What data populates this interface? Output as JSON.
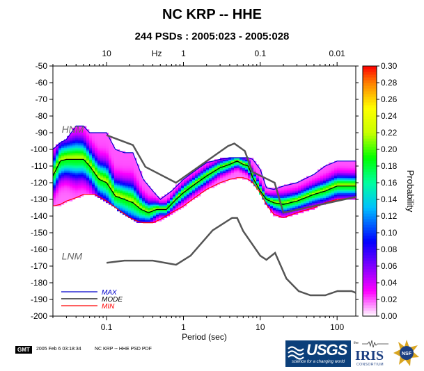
{
  "page": {
    "title": "NC KRP -- HHE",
    "subtitle": "244 PSDs : 2005:023 - 2005:028",
    "footer_date": "2005 Feb  6 03:18:34",
    "footer_file": "NC KRP -- HHE PSD PDF",
    "gmt_badge": "GMT",
    "logos": {
      "usgs": "USGS",
      "usgs_tagline": "science for a changing world",
      "iris_the": "the",
      "iris": "IRIS",
      "iris_consortium": "CONSORTIUM",
      "nsf": "NSF"
    }
  },
  "chart_data": {
    "type": "heatmap",
    "title": "NC KRP -- HHE",
    "subtitle": "244 PSDs : 2005:023 - 2005:028",
    "xlabel": "Period (sec)",
    "x_scale": "log",
    "xlim": [
      0.02,
      175
    ],
    "x_ticks": [
      0.1,
      1,
      10,
      100
    ],
    "x_tick_labels": [
      "0.1",
      "1",
      "10",
      "100"
    ],
    "top_axis": {
      "label": "Hz",
      "ticks": [
        10,
        1,
        0.1,
        0.01
      ],
      "tick_labels": [
        "10",
        "1",
        "0.1",
        "0.01"
      ]
    },
    "ylim": [
      -200,
      -50
    ],
    "y_ticks": [
      -200,
      -190,
      -180,
      -170,
      -160,
      -150,
      -140,
      -130,
      -120,
      -110,
      -100,
      -90,
      -80,
      -70,
      -60,
      -50
    ],
    "y_tick_labels": [
      "-200",
      "-190",
      "-180",
      "-170",
      "-160",
      "-150",
      "-140",
      "-130",
      "-120",
      "-110",
      "-100",
      "-90",
      "-80",
      "-70",
      "-60",
      "-50"
    ],
    "colorbar": {
      "label": "Probability",
      "range": [
        0,
        0.3
      ],
      "ticks": [
        0.0,
        0.02,
        0.04,
        0.06,
        0.08,
        0.1,
        0.12,
        0.14,
        0.16,
        0.18,
        0.2,
        0.22,
        0.24,
        0.26,
        0.28,
        0.3
      ],
      "tick_labels": [
        "0.00",
        "0.02",
        "0.04",
        "0.06",
        "0.08",
        "0.10",
        "0.12",
        "0.14",
        "0.16",
        "0.18",
        "0.20",
        "0.22",
        "0.24",
        "0.26",
        "0.28",
        "0.30"
      ],
      "colors": [
        "#ffffff",
        "#ff00ff",
        "#8000ff",
        "#0000ff",
        "#00bfff",
        "#00ffc0",
        "#00ff00",
        "#c0ff00",
        "#ffff00",
        "#ff8000",
        "#ff0000"
      ]
    },
    "legend": {
      "placement": "bottom-left",
      "entries": [
        {
          "label": "MAX",
          "color": "#0000cc"
        },
        {
          "label": "MODE",
          "color": "#000000"
        },
        {
          "label": "MIN",
          "color": "#ff0000"
        }
      ]
    },
    "annotations": [
      {
        "text": "HNM",
        "x": 0.026,
        "y": -88
      },
      {
        "text": "LNM",
        "x": 0.026,
        "y": -164
      }
    ],
    "series": [
      {
        "name": "MAX",
        "color": "#0000cc",
        "x": [
          0.02,
          0.025,
          0.03,
          0.04,
          0.05,
          0.06,
          0.08,
          0.1,
          0.13,
          0.17,
          0.22,
          0.3,
          0.4,
          0.5,
          0.7,
          1,
          1.5,
          2,
          3,
          4,
          5,
          6,
          7,
          8,
          10,
          12,
          15,
          20,
          30,
          50,
          70,
          100,
          175
        ],
        "y": [
          -100,
          -96,
          -94,
          -86,
          -86,
          -90,
          -90,
          -90,
          -100,
          -102,
          -102,
          -118,
          -125,
          -130,
          -125,
          -118,
          -112,
          -108,
          -106,
          -105,
          -105,
          -105,
          -105,
          -106,
          -112,
          -123,
          -124,
          -122,
          -120,
          -115,
          -110,
          -107,
          -107
        ]
      },
      {
        "name": "MODE",
        "color": "#000000",
        "x": [
          0.02,
          0.025,
          0.03,
          0.04,
          0.05,
          0.06,
          0.08,
          0.1,
          0.13,
          0.17,
          0.22,
          0.28,
          0.35,
          0.45,
          0.6,
          0.8,
          1,
          1.5,
          2,
          3,
          4,
          5,
          6,
          7,
          8,
          10,
          12,
          15,
          20,
          30,
          50,
          70,
          100,
          175
        ],
        "y": [
          -116,
          -107,
          -106,
          -106,
          -106,
          -110,
          -118,
          -120,
          -128,
          -130,
          -132,
          -136,
          -138,
          -136,
          -136,
          -130,
          -126,
          -120,
          -116,
          -111,
          -109,
          -107,
          -109,
          -110,
          -117,
          -125,
          -130,
          -132,
          -133,
          -131,
          -127,
          -125,
          -122,
          -122
        ]
      },
      {
        "name": "MIN",
        "color": "#ff0000",
        "x": [
          0.02,
          0.025,
          0.03,
          0.04,
          0.05,
          0.07,
          0.1,
          0.15,
          0.2,
          0.25,
          0.3,
          0.4,
          0.5,
          0.7,
          1,
          1.5,
          2,
          3,
          4,
          5,
          6,
          7,
          8,
          10,
          12,
          15,
          20,
          30,
          50,
          70,
          100,
          175
        ],
        "y": [
          -134,
          -133,
          -131,
          -129,
          -127,
          -127,
          -131,
          -137,
          -141,
          -143,
          -144,
          -144,
          -142,
          -138,
          -134,
          -128,
          -124,
          -120,
          -118,
          -117,
          -117,
          -118,
          -120,
          -126,
          -133,
          -139,
          -141,
          -138,
          -135,
          -132,
          -130,
          -129
        ]
      },
      {
        "name": "HNM",
        "color": "#555555",
        "x": [
          0.1,
          0.22,
          0.32,
          0.8,
          3.8,
          4.6,
          6.3,
          7.9,
          15.4,
          20,
          175
        ],
        "y": [
          -91.5,
          -97.4,
          -110.5,
          -120,
          -98,
          -96.5,
          -101,
          -113.5,
          -120,
          -138,
          -128.5
        ]
      },
      {
        "name": "LNM",
        "color": "#555555",
        "x": [
          0.1,
          0.17,
          0.4,
          0.8,
          1.24,
          2.4,
          4.3,
          5,
          6,
          10,
          12,
          15.6,
          21.9,
          31.6,
          45,
          70,
          101,
          154,
          175
        ],
        "y": [
          -168,
          -166.7,
          -166.7,
          -169.2,
          -163.7,
          -148.6,
          -141.1,
          -141.1,
          -149,
          -163.8,
          -166.2,
          -162.1,
          -177.5,
          -185,
          -187.5,
          -187.5,
          -185,
          -185,
          -186
        ]
      }
    ]
  }
}
